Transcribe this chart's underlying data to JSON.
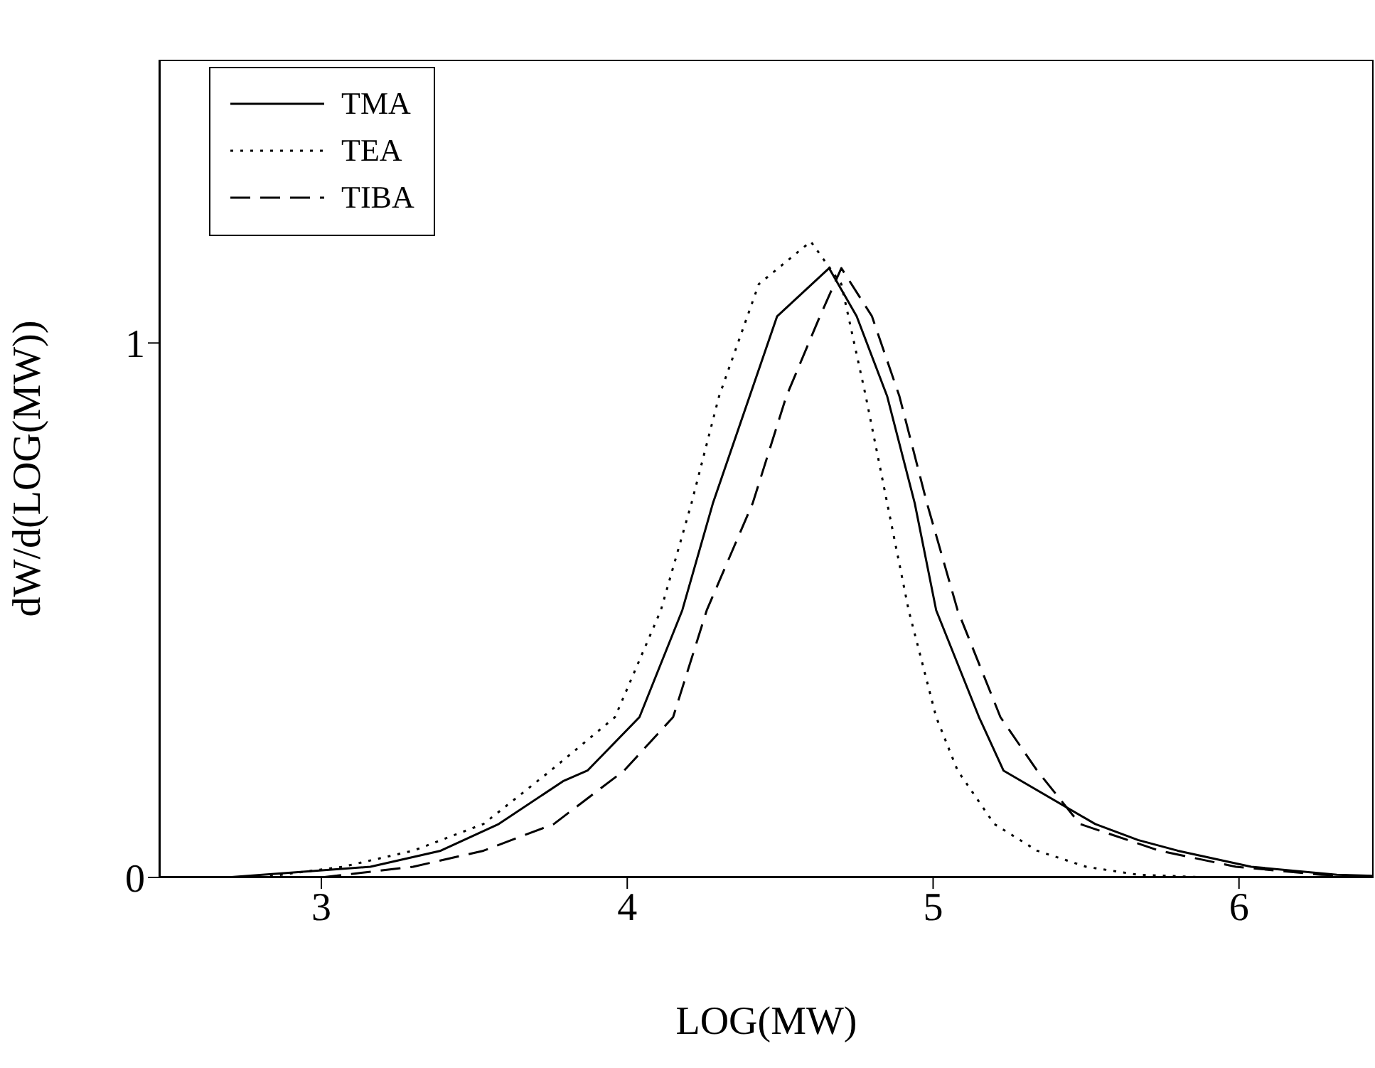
{
  "chart_data": {
    "type": "line",
    "xlabel": "LOG(MW)",
    "ylabel": "dW/d(LOG(MW))",
    "xlim": [
      2.47,
      6.44
    ],
    "ylim": [
      0,
      1.53
    ],
    "xticks": [
      3,
      4,
      5,
      6
    ],
    "yticks": [
      0,
      1
    ],
    "grid": false,
    "legend": "top left",
    "marker": "none",
    "series": [
      {
        "name": "TMA",
        "color": "#000000",
        "line_style": "solid",
        "x": [
          2.69,
          3.16,
          3.39,
          3.58,
          3.79,
          3.87,
          4.04,
          4.18,
          4.28,
          4.4,
          4.49,
          4.66,
          4.75,
          4.85,
          4.94,
          5.01,
          5.15,
          5.23,
          5.53,
          5.67,
          5.8,
          6.04,
          6.32,
          6.44
        ],
        "values": [
          0,
          0.02,
          0.05,
          0.1,
          0.18,
          0.2,
          0.3,
          0.5,
          0.7,
          0.9,
          1.05,
          1.14,
          1.05,
          0.9,
          0.7,
          0.5,
          0.3,
          0.2,
          0.1,
          0.07,
          0.05,
          0.02,
          0.005,
          0.003
        ]
      },
      {
        "name": "TEA",
        "color": "#000000",
        "line_style": "dotted",
        "x": [
          2.8,
          3.07,
          3.3,
          3.53,
          3.75,
          3.96,
          4.11,
          4.21,
          4.3,
          4.43,
          4.6,
          4.7,
          4.78,
          4.85,
          4.92,
          5.01,
          5.08,
          5.2,
          5.34,
          5.5,
          5.67,
          5.9
        ],
        "values": [
          0,
          0.02,
          0.05,
          0.1,
          0.2,
          0.3,
          0.5,
          0.7,
          0.9,
          1.11,
          1.19,
          1.11,
          0.9,
          0.7,
          0.5,
          0.3,
          0.2,
          0.1,
          0.05,
          0.02,
          0.005,
          0
        ]
      },
      {
        "name": "TIBA",
        "color": "#000000",
        "line_style": "dashed",
        "x": [
          3.0,
          3.3,
          3.53,
          3.76,
          3.99,
          4.15,
          4.26,
          4.41,
          4.52,
          4.63,
          4.7,
          4.8,
          4.89,
          4.98,
          5.08,
          5.22,
          5.34,
          5.48,
          5.74,
          5.99,
          6.27,
          6.44
        ],
        "values": [
          0,
          0.02,
          0.05,
          0.1,
          0.2,
          0.3,
          0.5,
          0.7,
          0.9,
          1.05,
          1.14,
          1.05,
          0.9,
          0.7,
          0.5,
          0.3,
          0.2,
          0.1,
          0.05,
          0.02,
          0.005,
          0.002
        ]
      }
    ]
  }
}
